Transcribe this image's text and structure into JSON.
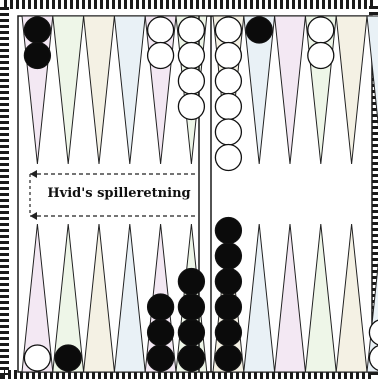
{
  "board": {
    "direction_label": "Hvid's spilleretning",
    "colors": {
      "frame": "#1a1a1a",
      "board_bg": "#ffffff",
      "point_outline": "#222222",
      "point_tints": [
        "#f3e8f3",
        "#eef6e8",
        "#f4f1e4",
        "#e9f1f6"
      ],
      "white_checker": "#ffffff",
      "black_checker": "#0b0b0b"
    },
    "top_points": [
      {
        "white": 0,
        "black": 2
      },
      {
        "white": 0,
        "black": 0
      },
      {
        "white": 0,
        "black": 0
      },
      {
        "white": 0,
        "black": 0
      },
      {
        "white": 2,
        "black": 0
      },
      {
        "white": 4,
        "black": 0
      },
      {
        "white": 6,
        "black": 0
      },
      {
        "white": 0,
        "black": 1
      },
      {
        "white": 0,
        "black": 0
      },
      {
        "white": 2,
        "black": 0
      },
      {
        "white": 0,
        "black": 0
      },
      {
        "white": 0,
        "black": 0
      }
    ],
    "bottom_points": [
      {
        "white": 1,
        "black": 0
      },
      {
        "white": 0,
        "black": 1
      },
      {
        "white": 0,
        "black": 0
      },
      {
        "white": 0,
        "black": 0
      },
      {
        "white": 0,
        "black": 3
      },
      {
        "white": 0,
        "black": 4
      },
      {
        "white": 0,
        "black": 6
      },
      {
        "white": 0,
        "black": 0
      },
      {
        "white": 0,
        "black": 0
      },
      {
        "white": 0,
        "black": 0
      },
      {
        "white": 0,
        "black": 0
      },
      {
        "white": 2,
        "black": 0
      }
    ]
  }
}
